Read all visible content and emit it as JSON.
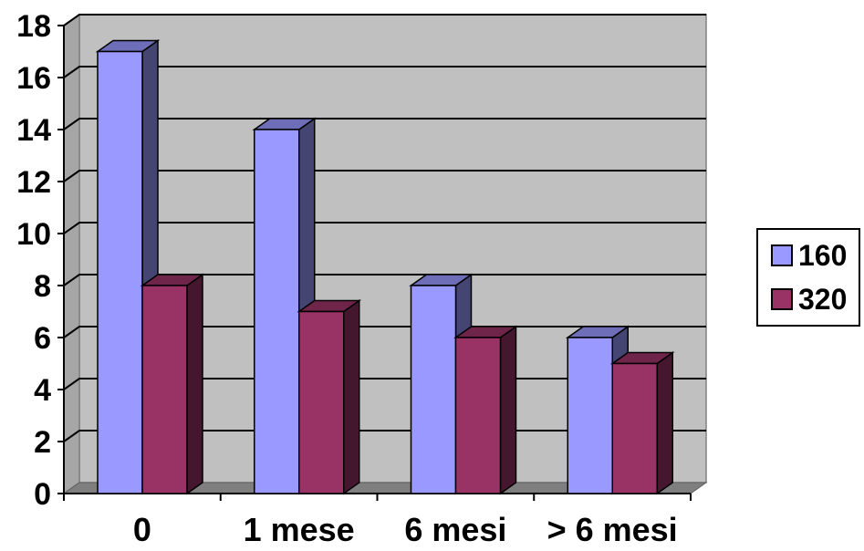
{
  "chart_data": {
    "type": "bar",
    "style": "3d-clustered-column",
    "categories": [
      "0",
      "1 mese",
      "6 mesi",
      "> 6 mesi"
    ],
    "series": [
      {
        "name": "160",
        "values": [
          17,
          14,
          8,
          6
        ],
        "color": "#9999FF"
      },
      {
        "name": "320",
        "values": [
          8,
          7,
          6,
          5
        ],
        "color": "#993366"
      }
    ],
    "yticks": [
      "0",
      "2",
      "4",
      "6",
      "8",
      "10",
      "12",
      "14",
      "16",
      "18"
    ],
    "ylim": [
      0,
      18
    ],
    "grid": true,
    "plot_background": "#C0C0C0",
    "legend_position": "right"
  }
}
